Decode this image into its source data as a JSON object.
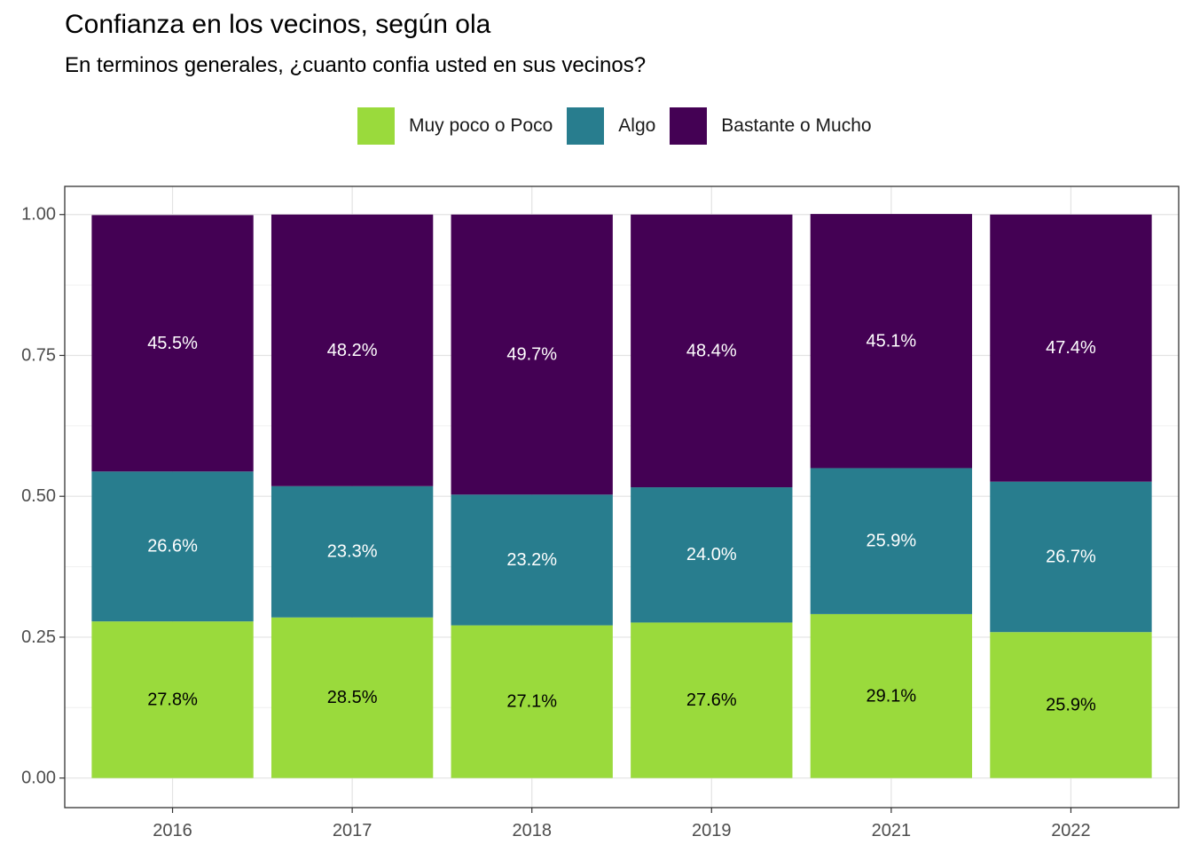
{
  "title": "Confianza en los vecinos, según ola",
  "subtitle": "En terminos generales, ¿cuanto confia usted en sus vecinos?",
  "legend": [
    {
      "label": "Muy poco o Poco",
      "color": "#9ADA3C"
    },
    {
      "label": "Algo",
      "color": "#287D8E"
    },
    {
      "label": "Bastante o Mucho",
      "color": "#440154"
    }
  ],
  "chart_data": {
    "type": "bar",
    "stacked": true,
    "categories": [
      "2016",
      "2017",
      "2018",
      "2019",
      "2021",
      "2022"
    ],
    "series": [
      {
        "name": "Muy poco o Poco",
        "color": "#9ADA3C",
        "label_color": "#000000",
        "values": [
          0.278,
          0.285,
          0.271,
          0.276,
          0.291,
          0.259
        ],
        "labels": [
          "27.8%",
          "28.5%",
          "27.1%",
          "27.6%",
          "29.1%",
          "25.9%"
        ]
      },
      {
        "name": "Algo",
        "color": "#287D8E",
        "label_color": "#ffffff",
        "values": [
          0.266,
          0.233,
          0.232,
          0.24,
          0.259,
          0.267
        ],
        "labels": [
          "26.6%",
          "23.3%",
          "23.2%",
          "24.0%",
          "25.9%",
          "26.7%"
        ]
      },
      {
        "name": "Bastante o Mucho",
        "color": "#440154",
        "label_color": "#ffffff",
        "values": [
          0.455,
          0.482,
          0.497,
          0.484,
          0.451,
          0.474
        ],
        "labels": [
          "45.5%",
          "48.2%",
          "49.7%",
          "48.4%",
          "45.1%",
          "47.4%"
        ]
      }
    ],
    "yticks": [
      "0.00",
      "0.25",
      "0.50",
      "0.75",
      "1.00"
    ],
    "ylim": [
      -0.0525,
      1.05
    ],
    "grid": true,
    "legend_position": "top"
  }
}
